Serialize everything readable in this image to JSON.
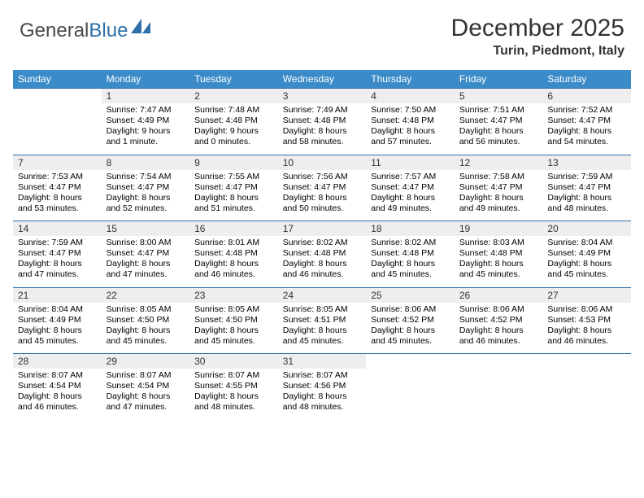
{
  "logo": {
    "text_gray": "General",
    "text_blue": "Blue"
  },
  "title": "December 2025",
  "location": "Turin, Piedmont, Italy",
  "colors": {
    "header_bg": "#3b8bc9",
    "header_text": "#ffffff",
    "daynum_bg": "#eeeeee",
    "rule": "#2f6fa8",
    "body_text": "#000000",
    "title_text": "#333333"
  },
  "day_headers": [
    "Sunday",
    "Monday",
    "Tuesday",
    "Wednesday",
    "Thursday",
    "Friday",
    "Saturday"
  ],
  "weeks": [
    [
      {
        "num": "",
        "sunrise": "",
        "sunset": "",
        "daylight": ""
      },
      {
        "num": "1",
        "sunrise": "Sunrise: 7:47 AM",
        "sunset": "Sunset: 4:49 PM",
        "daylight": "Daylight: 9 hours and 1 minute."
      },
      {
        "num": "2",
        "sunrise": "Sunrise: 7:48 AM",
        "sunset": "Sunset: 4:48 PM",
        "daylight": "Daylight: 9 hours and 0 minutes."
      },
      {
        "num": "3",
        "sunrise": "Sunrise: 7:49 AM",
        "sunset": "Sunset: 4:48 PM",
        "daylight": "Daylight: 8 hours and 58 minutes."
      },
      {
        "num": "4",
        "sunrise": "Sunrise: 7:50 AM",
        "sunset": "Sunset: 4:48 PM",
        "daylight": "Daylight: 8 hours and 57 minutes."
      },
      {
        "num": "5",
        "sunrise": "Sunrise: 7:51 AM",
        "sunset": "Sunset: 4:47 PM",
        "daylight": "Daylight: 8 hours and 56 minutes."
      },
      {
        "num": "6",
        "sunrise": "Sunrise: 7:52 AM",
        "sunset": "Sunset: 4:47 PM",
        "daylight": "Daylight: 8 hours and 54 minutes."
      }
    ],
    [
      {
        "num": "7",
        "sunrise": "Sunrise: 7:53 AM",
        "sunset": "Sunset: 4:47 PM",
        "daylight": "Daylight: 8 hours and 53 minutes."
      },
      {
        "num": "8",
        "sunrise": "Sunrise: 7:54 AM",
        "sunset": "Sunset: 4:47 PM",
        "daylight": "Daylight: 8 hours and 52 minutes."
      },
      {
        "num": "9",
        "sunrise": "Sunrise: 7:55 AM",
        "sunset": "Sunset: 4:47 PM",
        "daylight": "Daylight: 8 hours and 51 minutes."
      },
      {
        "num": "10",
        "sunrise": "Sunrise: 7:56 AM",
        "sunset": "Sunset: 4:47 PM",
        "daylight": "Daylight: 8 hours and 50 minutes."
      },
      {
        "num": "11",
        "sunrise": "Sunrise: 7:57 AM",
        "sunset": "Sunset: 4:47 PM",
        "daylight": "Daylight: 8 hours and 49 minutes."
      },
      {
        "num": "12",
        "sunrise": "Sunrise: 7:58 AM",
        "sunset": "Sunset: 4:47 PM",
        "daylight": "Daylight: 8 hours and 49 minutes."
      },
      {
        "num": "13",
        "sunrise": "Sunrise: 7:59 AM",
        "sunset": "Sunset: 4:47 PM",
        "daylight": "Daylight: 8 hours and 48 minutes."
      }
    ],
    [
      {
        "num": "14",
        "sunrise": "Sunrise: 7:59 AM",
        "sunset": "Sunset: 4:47 PM",
        "daylight": "Daylight: 8 hours and 47 minutes."
      },
      {
        "num": "15",
        "sunrise": "Sunrise: 8:00 AM",
        "sunset": "Sunset: 4:47 PM",
        "daylight": "Daylight: 8 hours and 47 minutes."
      },
      {
        "num": "16",
        "sunrise": "Sunrise: 8:01 AM",
        "sunset": "Sunset: 4:48 PM",
        "daylight": "Daylight: 8 hours and 46 minutes."
      },
      {
        "num": "17",
        "sunrise": "Sunrise: 8:02 AM",
        "sunset": "Sunset: 4:48 PM",
        "daylight": "Daylight: 8 hours and 46 minutes."
      },
      {
        "num": "18",
        "sunrise": "Sunrise: 8:02 AM",
        "sunset": "Sunset: 4:48 PM",
        "daylight": "Daylight: 8 hours and 45 minutes."
      },
      {
        "num": "19",
        "sunrise": "Sunrise: 8:03 AM",
        "sunset": "Sunset: 4:48 PM",
        "daylight": "Daylight: 8 hours and 45 minutes."
      },
      {
        "num": "20",
        "sunrise": "Sunrise: 8:04 AM",
        "sunset": "Sunset: 4:49 PM",
        "daylight": "Daylight: 8 hours and 45 minutes."
      }
    ],
    [
      {
        "num": "21",
        "sunrise": "Sunrise: 8:04 AM",
        "sunset": "Sunset: 4:49 PM",
        "daylight": "Daylight: 8 hours and 45 minutes."
      },
      {
        "num": "22",
        "sunrise": "Sunrise: 8:05 AM",
        "sunset": "Sunset: 4:50 PM",
        "daylight": "Daylight: 8 hours and 45 minutes."
      },
      {
        "num": "23",
        "sunrise": "Sunrise: 8:05 AM",
        "sunset": "Sunset: 4:50 PM",
        "daylight": "Daylight: 8 hours and 45 minutes."
      },
      {
        "num": "24",
        "sunrise": "Sunrise: 8:05 AM",
        "sunset": "Sunset: 4:51 PM",
        "daylight": "Daylight: 8 hours and 45 minutes."
      },
      {
        "num": "25",
        "sunrise": "Sunrise: 8:06 AM",
        "sunset": "Sunset: 4:52 PM",
        "daylight": "Daylight: 8 hours and 45 minutes."
      },
      {
        "num": "26",
        "sunrise": "Sunrise: 8:06 AM",
        "sunset": "Sunset: 4:52 PM",
        "daylight": "Daylight: 8 hours and 46 minutes."
      },
      {
        "num": "27",
        "sunrise": "Sunrise: 8:06 AM",
        "sunset": "Sunset: 4:53 PM",
        "daylight": "Daylight: 8 hours and 46 minutes."
      }
    ],
    [
      {
        "num": "28",
        "sunrise": "Sunrise: 8:07 AM",
        "sunset": "Sunset: 4:54 PM",
        "daylight": "Daylight: 8 hours and 46 minutes."
      },
      {
        "num": "29",
        "sunrise": "Sunrise: 8:07 AM",
        "sunset": "Sunset: 4:54 PM",
        "daylight": "Daylight: 8 hours and 47 minutes."
      },
      {
        "num": "30",
        "sunrise": "Sunrise: 8:07 AM",
        "sunset": "Sunset: 4:55 PM",
        "daylight": "Daylight: 8 hours and 48 minutes."
      },
      {
        "num": "31",
        "sunrise": "Sunrise: 8:07 AM",
        "sunset": "Sunset: 4:56 PM",
        "daylight": "Daylight: 8 hours and 48 minutes."
      },
      {
        "num": "",
        "sunrise": "",
        "sunset": "",
        "daylight": ""
      },
      {
        "num": "",
        "sunrise": "",
        "sunset": "",
        "daylight": ""
      },
      {
        "num": "",
        "sunrise": "",
        "sunset": "",
        "daylight": ""
      }
    ]
  ]
}
